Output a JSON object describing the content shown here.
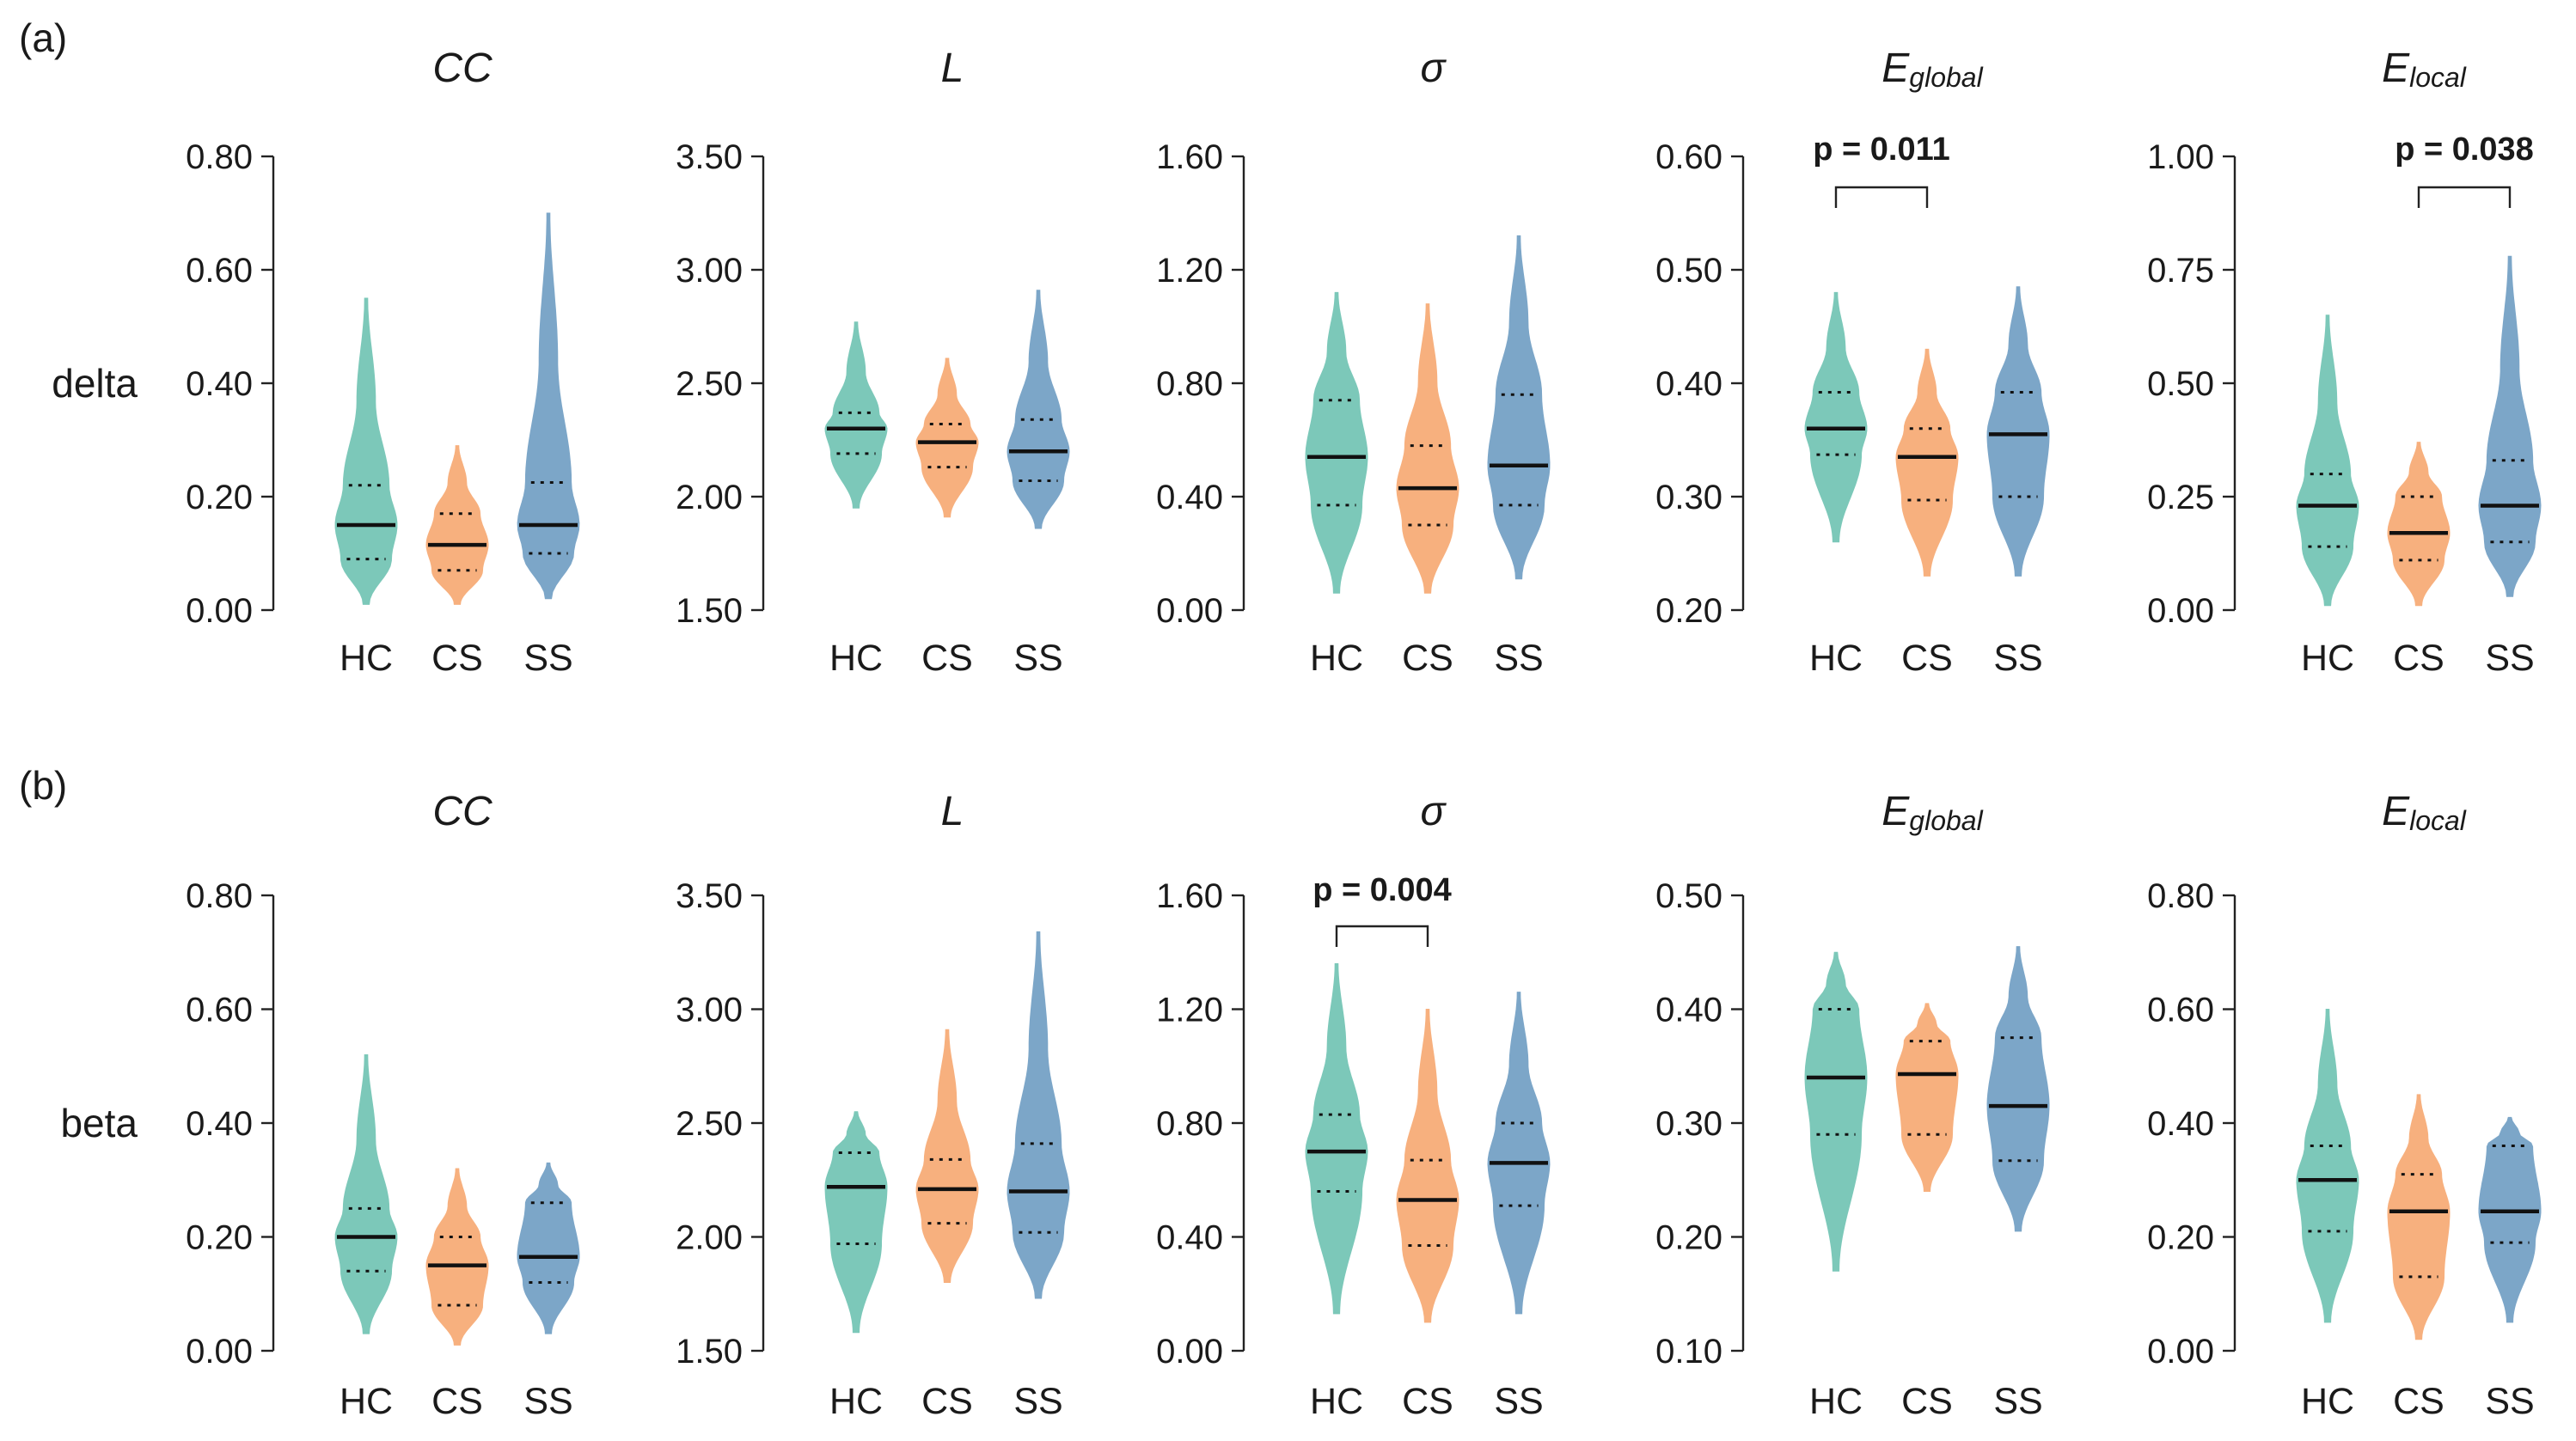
{
  "colors": {
    "HC": "#7cc8b9",
    "CS": "#f7b07e",
    "SS": "#7ca6c8"
  },
  "chart_data": [
    {
      "panel_label": "(a)",
      "row_label": "delta",
      "type": "violin",
      "title": "CC",
      "title_sub": "",
      "categories": [
        "HC",
        "CS",
        "SS"
      ],
      "ylim": [
        0.0,
        0.8
      ],
      "yticks": [
        "0.00",
        "0.20",
        "0.40",
        "0.60",
        "0.80"
      ],
      "groups": [
        {
          "name": "HC",
          "min": 0.01,
          "max": 0.55,
          "q1": 0.09,
          "median": 0.15,
          "q3": 0.22
        },
        {
          "name": "CS",
          "min": 0.01,
          "max": 0.29,
          "q1": 0.07,
          "median": 0.115,
          "q3": 0.17
        },
        {
          "name": "SS",
          "min": 0.02,
          "max": 0.7,
          "q1": 0.1,
          "median": 0.15,
          "q3": 0.225
        }
      ]
    },
    {
      "row_label": "",
      "type": "violin",
      "title": "L",
      "title_sub": "",
      "categories": [
        "HC",
        "CS",
        "SS"
      ],
      "ylim": [
        1.5,
        3.5
      ],
      "yticks": [
        "1.50",
        "2.00",
        "2.50",
        "3.00",
        "3.50"
      ],
      "groups": [
        {
          "name": "HC",
          "min": 1.95,
          "max": 2.77,
          "q1": 2.19,
          "median": 2.3,
          "q3": 2.37
        },
        {
          "name": "CS",
          "min": 1.91,
          "max": 2.61,
          "q1": 2.13,
          "median": 2.24,
          "q3": 2.32
        },
        {
          "name": "SS",
          "min": 1.86,
          "max": 2.91,
          "q1": 2.07,
          "median": 2.2,
          "q3": 2.34
        }
      ]
    },
    {
      "row_label": "",
      "type": "violin",
      "title": "σ",
      "title_sub": "",
      "categories": [
        "HC",
        "CS",
        "SS"
      ],
      "ylim": [
        0.0,
        1.6
      ],
      "yticks": [
        "0.00",
        "0.40",
        "0.80",
        "1.20",
        "1.60"
      ],
      "groups": [
        {
          "name": "HC",
          "min": 0.06,
          "max": 1.12,
          "q1": 0.37,
          "median": 0.54,
          "q3": 0.74
        },
        {
          "name": "CS",
          "min": 0.06,
          "max": 1.08,
          "q1": 0.3,
          "median": 0.43,
          "q3": 0.58
        },
        {
          "name": "SS",
          "min": 0.11,
          "max": 1.32,
          "q1": 0.37,
          "median": 0.51,
          "q3": 0.76
        }
      ]
    },
    {
      "row_label": "",
      "type": "violin",
      "title": "E",
      "title_sub": "global",
      "categories": [
        "HC",
        "CS",
        "SS"
      ],
      "ylim": [
        0.2,
        0.6
      ],
      "yticks": [
        "0.20",
        "0.30",
        "0.40",
        "0.50",
        "0.60"
      ],
      "groups": [
        {
          "name": "HC",
          "min": 0.26,
          "max": 0.48,
          "q1": 0.337,
          "median": 0.36,
          "q3": 0.392
        },
        {
          "name": "CS",
          "min": 0.23,
          "max": 0.43,
          "q1": 0.297,
          "median": 0.335,
          "q3": 0.36
        },
        {
          "name": "SS",
          "min": 0.23,
          "max": 0.485,
          "q1": 0.3,
          "median": 0.355,
          "q3": 0.392
        }
      ],
      "annotation": {
        "text": "p = 0.011",
        "from": 0,
        "to": 1
      }
    },
    {
      "row_label": "",
      "type": "violin",
      "title": "E",
      "title_sub": "local",
      "categories": [
        "HC",
        "CS",
        "SS"
      ],
      "ylim": [
        0.0,
        1.0
      ],
      "yticks": [
        "0.00",
        "0.25",
        "0.50",
        "0.75",
        "1.00"
      ],
      "groups": [
        {
          "name": "HC",
          "min": 0.01,
          "max": 0.65,
          "q1": 0.14,
          "median": 0.23,
          "q3": 0.3
        },
        {
          "name": "CS",
          "min": 0.01,
          "max": 0.37,
          "q1": 0.11,
          "median": 0.17,
          "q3": 0.25
        },
        {
          "name": "SS",
          "min": 0.03,
          "max": 0.78,
          "q1": 0.15,
          "median": 0.23,
          "q3": 0.33
        }
      ],
      "annotation": {
        "text": "p = 0.038",
        "from": 1,
        "to": 2
      }
    },
    {
      "panel_label": "(b)",
      "row_label": "beta",
      "type": "violin",
      "title": "CC",
      "title_sub": "",
      "categories": [
        "HC",
        "CS",
        "SS"
      ],
      "ylim": [
        0.0,
        0.8
      ],
      "yticks": [
        "0.00",
        "0.20",
        "0.40",
        "0.60",
        "0.80"
      ],
      "groups": [
        {
          "name": "HC",
          "min": 0.03,
          "max": 0.52,
          "q1": 0.14,
          "median": 0.2,
          "q3": 0.25
        },
        {
          "name": "CS",
          "min": 0.01,
          "max": 0.32,
          "q1": 0.08,
          "median": 0.15,
          "q3": 0.2
        },
        {
          "name": "SS",
          "min": 0.03,
          "max": 0.33,
          "q1": 0.12,
          "median": 0.165,
          "q3": 0.26
        }
      ]
    },
    {
      "row_label": "",
      "type": "violin",
      "title": "L",
      "title_sub": "",
      "categories": [
        "HC",
        "CS",
        "SS"
      ],
      "ylim": [
        1.5,
        3.5
      ],
      "yticks": [
        "1.50",
        "2.00",
        "2.50",
        "3.00",
        "3.50"
      ],
      "groups": [
        {
          "name": "HC",
          "min": 1.58,
          "max": 2.55,
          "q1": 1.97,
          "median": 2.22,
          "q3": 2.37
        },
        {
          "name": "CS",
          "min": 1.8,
          "max": 2.91,
          "q1": 2.06,
          "median": 2.21,
          "q3": 2.34
        },
        {
          "name": "SS",
          "min": 1.73,
          "max": 3.34,
          "q1": 2.02,
          "median": 2.2,
          "q3": 2.41
        }
      ]
    },
    {
      "row_label": "",
      "type": "violin",
      "title": "σ",
      "title_sub": "",
      "categories": [
        "HC",
        "CS",
        "SS"
      ],
      "ylim": [
        0.0,
        1.6
      ],
      "yticks": [
        "0.00",
        "0.40",
        "0.80",
        "1.20",
        "1.60"
      ],
      "groups": [
        {
          "name": "HC",
          "min": 0.13,
          "max": 1.36,
          "q1": 0.56,
          "median": 0.7,
          "q3": 0.83
        },
        {
          "name": "CS",
          "min": 0.1,
          "max": 1.2,
          "q1": 0.37,
          "median": 0.53,
          "q3": 0.67
        },
        {
          "name": "SS",
          "min": 0.13,
          "max": 1.26,
          "q1": 0.51,
          "median": 0.66,
          "q3": 0.8
        }
      ],
      "annotation": {
        "text": "p = 0.004",
        "from": 0,
        "to": 1
      }
    },
    {
      "row_label": "",
      "type": "violin",
      "title": "E",
      "title_sub": "global",
      "categories": [
        "HC",
        "CS",
        "SS"
      ],
      "ylim": [
        0.1,
        0.5
      ],
      "yticks": [
        "0.10",
        "0.20",
        "0.30",
        "0.40",
        "0.50"
      ],
      "groups": [
        {
          "name": "HC",
          "min": 0.17,
          "max": 0.45,
          "q1": 0.29,
          "median": 0.34,
          "q3": 0.4
        },
        {
          "name": "CS",
          "min": 0.24,
          "max": 0.405,
          "q1": 0.29,
          "median": 0.343,
          "q3": 0.372
        },
        {
          "name": "SS",
          "min": 0.205,
          "max": 0.455,
          "q1": 0.267,
          "median": 0.315,
          "q3": 0.375
        }
      ]
    },
    {
      "row_label": "",
      "type": "violin",
      "title": "E",
      "title_sub": "local",
      "categories": [
        "HC",
        "CS",
        "SS"
      ],
      "ylim": [
        0.0,
        0.8
      ],
      "yticks": [
        "0.00",
        "0.20",
        "0.40",
        "0.60",
        "0.80"
      ],
      "groups": [
        {
          "name": "HC",
          "min": 0.05,
          "max": 0.6,
          "q1": 0.21,
          "median": 0.3,
          "q3": 0.36
        },
        {
          "name": "CS",
          "min": 0.02,
          "max": 0.45,
          "q1": 0.13,
          "median": 0.245,
          "q3": 0.31
        },
        {
          "name": "SS",
          "min": 0.05,
          "max": 0.41,
          "q1": 0.19,
          "median": 0.245,
          "q3": 0.36
        }
      ]
    }
  ]
}
